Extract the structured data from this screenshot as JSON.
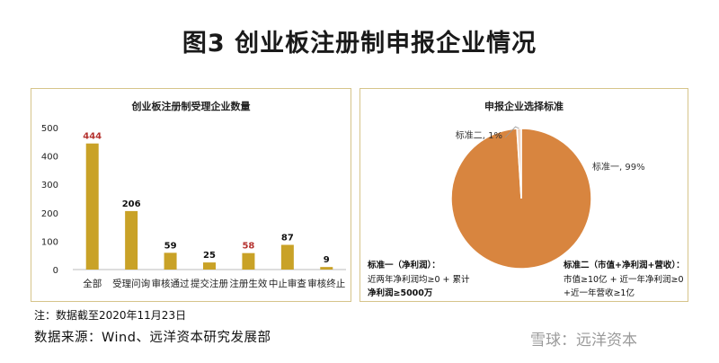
{
  "page_title": "图3  创业板注册制申报企业情况",
  "note": "注：数据截至2020年11月23日",
  "source": "数据来源：Wind、远洋资本研究发展部",
  "watermark": "雪球：远洋资本",
  "colors": {
    "bar": "#c9a227",
    "pie_main": "#d8853f",
    "pie_small": "#f3d6c2",
    "label_red": "#b5322f",
    "label_dark": "#111111",
    "border": "#d6c48a"
  },
  "chart_data": [
    {
      "type": "bar",
      "title": "创业板注册制受理企业数量",
      "categories": [
        "全部",
        "受理问询",
        "审核通过",
        "提交注册",
        "注册生效",
        "中止审查",
        "审核终止"
      ],
      "values": [
        444,
        206,
        59,
        25,
        58,
        87,
        9
      ],
      "value_labels": [
        "444",
        "206",
        "59",
        "25",
        "58",
        "87",
        "9"
      ],
      "highlight": [
        true,
        false,
        false,
        false,
        true,
        false,
        false
      ],
      "ylim": [
        0,
        500
      ],
      "yticks": [
        0,
        100,
        200,
        300,
        400,
        500
      ],
      "ytick_labels": [
        "0",
        "100",
        "200",
        "300",
        "400",
        "500"
      ],
      "grid": false
    },
    {
      "type": "pie",
      "title": "申报企业选择标准",
      "slices": [
        {
          "label": "标准一, 99%",
          "value": 99
        },
        {
          "label": "标准二, 1%",
          "value": 1
        }
      ]
    }
  ],
  "standards": {
    "one": {
      "title": "标准一（净利润）：",
      "lines": [
        "近两年净利润均≥0 + 累计",
        "净利润≥5000万"
      ]
    },
    "two": {
      "title": "标准二（市值+净利润+营收）：",
      "lines": [
        "市值≥10亿 + 近一年净利润≥0",
        "+近一年营收≥1亿"
      ]
    }
  }
}
